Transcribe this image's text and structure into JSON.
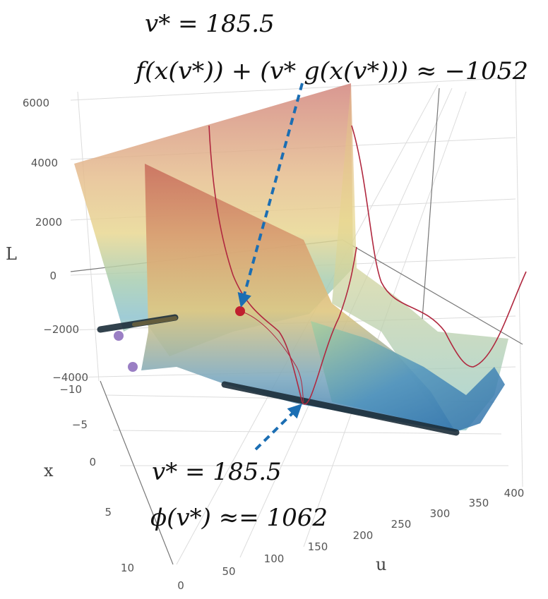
{
  "chart_data": {
    "type": "surface3d",
    "axes": {
      "z": {
        "label": "L",
        "ticks": [
          "6000",
          "4000",
          "2000",
          "0",
          "−2000",
          "−4000"
        ]
      },
      "x": {
        "label": "x",
        "ticks": [
          "−10",
          "−5",
          "0",
          "5",
          "10"
        ]
      },
      "u": {
        "label": "u",
        "ticks": [
          "0",
          "50",
          "100",
          "150",
          "200",
          "250",
          "300",
          "350",
          "400"
        ]
      }
    },
    "annotations": {
      "top_line1": "v* = 185.5",
      "top_line2": "f(x(v*)) + (v* g(x(v*))) ≈ −1052",
      "bottom_line1": "v* = 185.5",
      "bottom_line2": "ϕ(v*) ≈= 1062"
    },
    "points": {
      "saddle": {
        "v": 185.5,
        "L": -1052,
        "label": "red"
      },
      "dual": {
        "v": 185.5,
        "phi": 1062
      }
    },
    "colors": {
      "surface_high": "#c97872",
      "surface_mid": "#e6d48c",
      "surface_low": "#3b7fb5",
      "curve": "#b0283f",
      "marker_red": "#c0202f",
      "marker_purple": "#9a7fc4",
      "arrow": "#1b6eb3",
      "band": "#1c2e3a"
    }
  }
}
